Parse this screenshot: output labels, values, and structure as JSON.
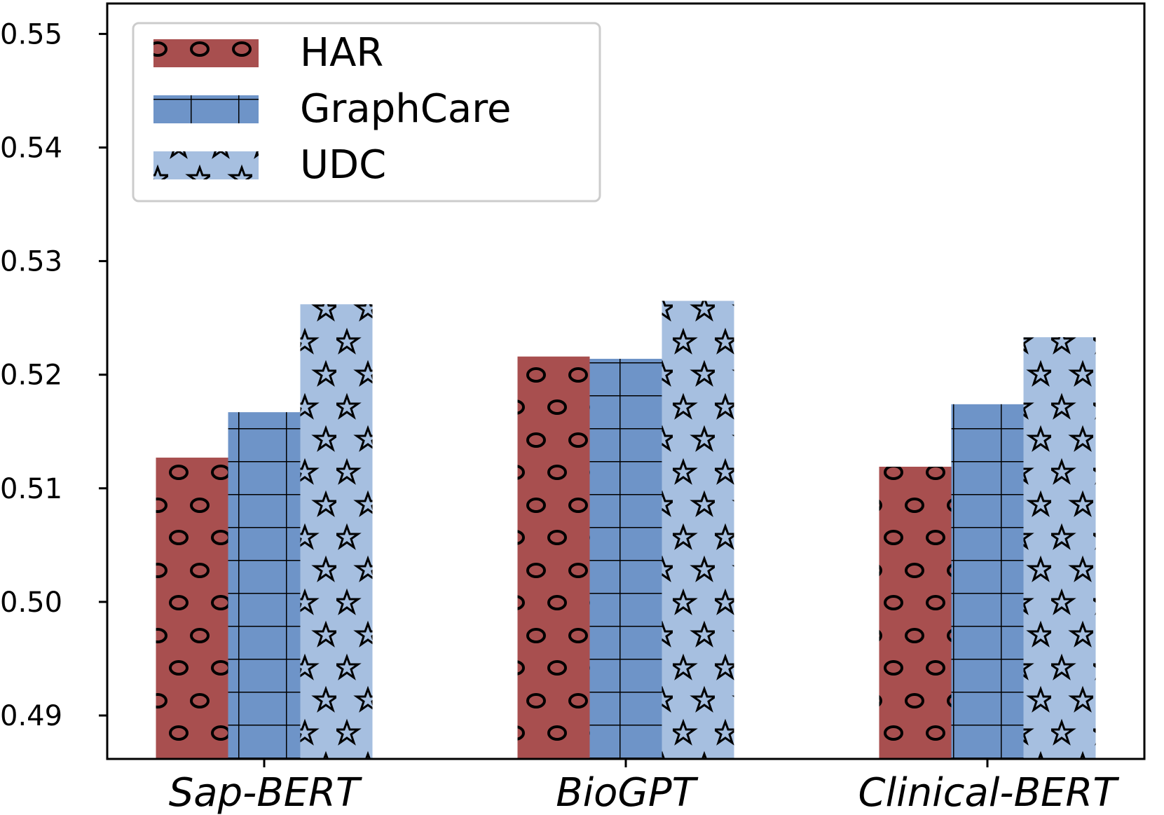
{
  "chart_data": {
    "type": "bar",
    "title": "",
    "xlabel": "",
    "ylabel": "",
    "categories": [
      "Sap-BERT",
      "BioGPT",
      "Clinical-BERT"
    ],
    "series": [
      {
        "name": "HAR",
        "values": [
          0.5127,
          0.5216,
          0.5119
        ],
        "color": "#a84f4f",
        "hatch": "circles"
      },
      {
        "name": "GraphCare",
        "values": [
          0.5167,
          0.5214,
          0.5174
        ],
        "color": "#6e94c8",
        "hatch": "grid"
      },
      {
        "name": "UDC",
        "values": [
          0.5262,
          0.5265,
          0.5233
        ],
        "color": "#a6bfe0",
        "hatch": "stars"
      }
    ],
    "ylim": [
      0.4865,
      0.553
    ],
    "yticks": [
      "0.49",
      "0.50",
      "0.51",
      "0.52",
      "0.53",
      "0.54",
      "0.55"
    ],
    "ytick_values": [
      0.49,
      0.5,
      0.51,
      0.52,
      0.53,
      0.54,
      0.55
    ],
    "grid": false,
    "legend_position": "top-left"
  }
}
